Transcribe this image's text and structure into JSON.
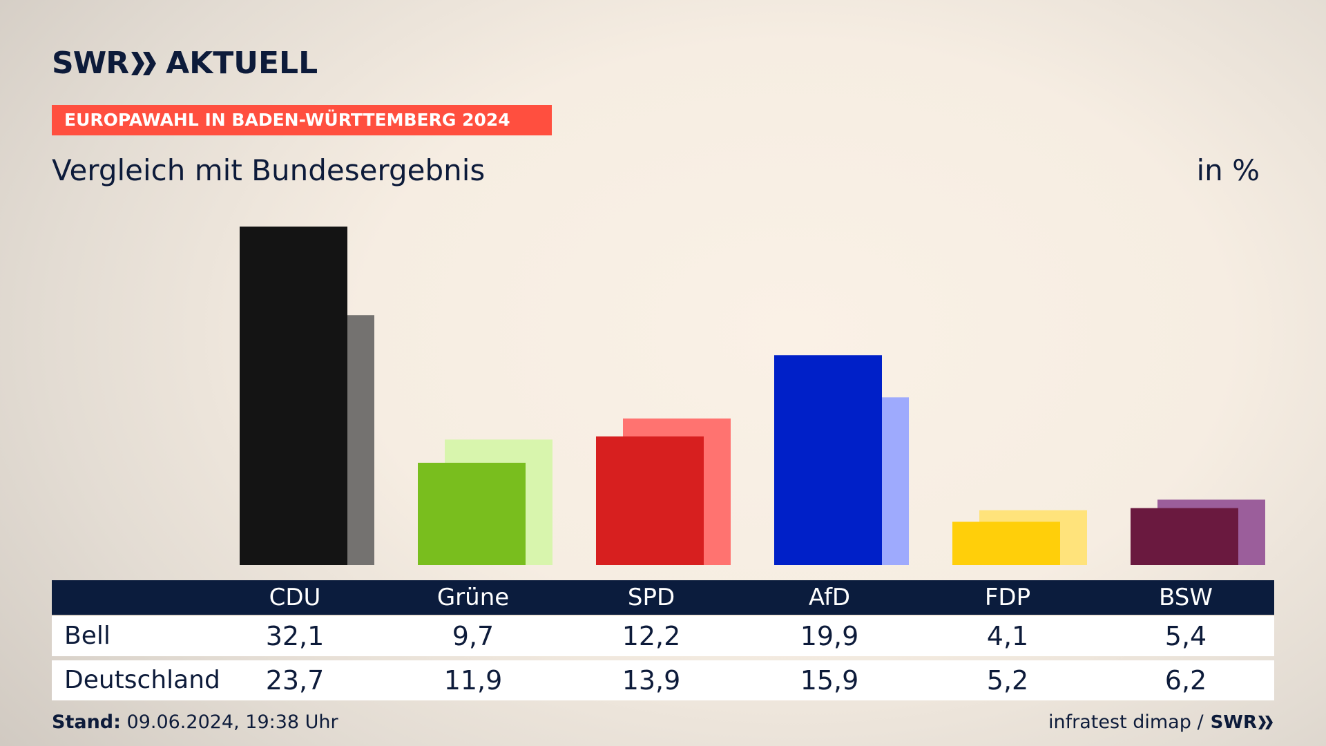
{
  "logo": {
    "brand": "SWR",
    "product": "AKTUELL"
  },
  "banner": {
    "text": "EUROPAWAHL IN BADEN-WÜRTTEMBERG 2024"
  },
  "subtitle": "Vergleich mit Bundesergebnis",
  "unit": "in %",
  "colors": {
    "accent": "#ff4f3f",
    "navy": "#0b1c3d"
  },
  "chart_data": {
    "type": "bar",
    "categories": [
      "CDU",
      "Grüne",
      "SPD",
      "AfD",
      "FDP",
      "BSW"
    ],
    "series": [
      {
        "name": "Bell",
        "values": [
          32.1,
          9.7,
          12.2,
          19.9,
          4.1,
          5.4
        ],
        "colors": [
          "#141414",
          "#79be1e",
          "#d71f1f",
          "#0020c8",
          "#ffcf0a",
          "#6a193f"
        ]
      },
      {
        "name": "Deutschland",
        "values": [
          23.7,
          11.9,
          13.9,
          15.9,
          5.2,
          6.2
        ],
        "colors": [
          "#747270",
          "#d8f5ad",
          "#ff7370",
          "#9eaafd",
          "#ffe37b",
          "#9b5e9b"
        ]
      }
    ],
    "value_labels": {
      "Bell": [
        "32,1",
        "9,7",
        "12,2",
        "19,9",
        "4,1",
        "5,4"
      ],
      "Deutschland": [
        "23,7",
        "11,9",
        "13,9",
        "15,9",
        "5,2",
        "6,2"
      ]
    },
    "ylim": [
      0,
      32.1
    ],
    "grid": false,
    "legend": "table below"
  },
  "footer": {
    "stand_label": "Stand:",
    "stand_value": "09.06.2024, 19:38 Uhr",
    "source": "infratest dimap /",
    "source_brand": "SWR"
  }
}
